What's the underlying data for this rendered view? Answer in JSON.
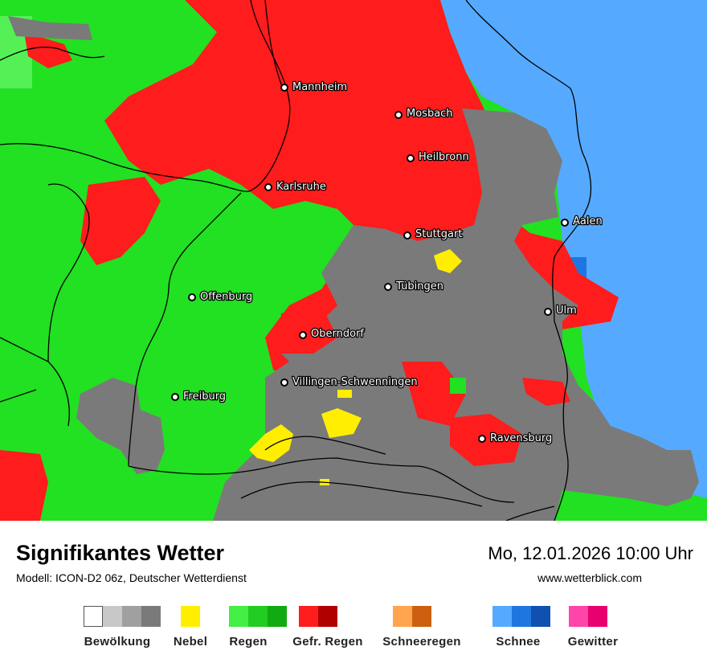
{
  "header": {
    "title": "Signifikantes Wetter",
    "model_line": "Modell: ICON-D2 06z, Deutscher Wetterdienst",
    "datetime": "Mo, 12.01.2026 10:00 Uhr",
    "website": "www.wetterblick.com"
  },
  "map": {
    "cities": [
      {
        "name": "Mannheim"
      },
      {
        "name": "Mosbach"
      },
      {
        "name": "Heilbronn"
      },
      {
        "name": "Karlsruhe"
      },
      {
        "name": "Aalen"
      },
      {
        "name": "Stuttgart"
      },
      {
        "name": "Tübingen"
      },
      {
        "name": "Offenburg"
      },
      {
        "name": "Ulm"
      },
      {
        "name": "Oberndorf"
      },
      {
        "name": "Villingen-Schwenningen"
      },
      {
        "name": "Freiburg"
      },
      {
        "name": "Ravensburg"
      }
    ]
  },
  "legend": [
    {
      "label": "Bewölkung",
      "colors": [
        "#ffffff",
        "#c8c8c8",
        "#a0a0a0",
        "#7a7a7a"
      ]
    },
    {
      "label": "Nebel",
      "colors": [
        "#ffee00"
      ]
    },
    {
      "label": "Regen",
      "colors": [
        "#44ee44",
        "#22cc22",
        "#11aa11"
      ]
    },
    {
      "label": "Gefr. Regen",
      "colors": [
        "#ff1c1c",
        "#b00000"
      ]
    },
    {
      "label": "Schneeregen",
      "colors": [
        "#ffa54f",
        "#cc6010"
      ]
    },
    {
      "label": "Schnee",
      "colors": [
        "#55aaff",
        "#1e77e0",
        "#1050b0"
      ]
    },
    {
      "label": "Gewitter",
      "colors": [
        "#ff44aa",
        "#e8006e"
      ]
    }
  ],
  "map_colors": {
    "rain": "#22e022",
    "rain_light": "#55f055",
    "freezing_rain": "#ff1c1c",
    "cloud": "#7a7a7a",
    "snow": "#55aaff",
    "snow_dark": "#1e77e0",
    "fog": "#ffee00",
    "border": "#000000"
  }
}
